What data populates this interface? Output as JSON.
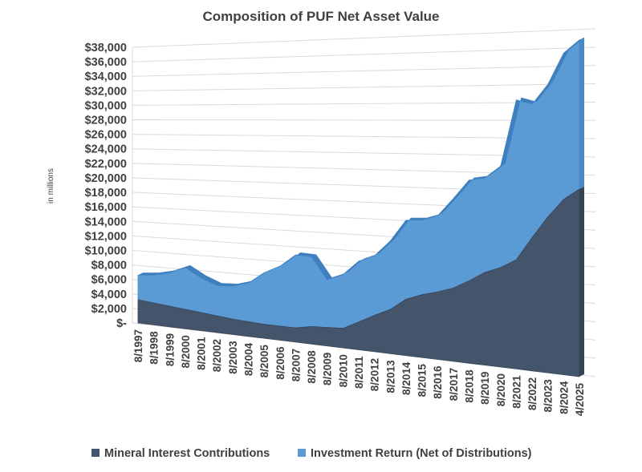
{
  "chart_data": {
    "type": "area",
    "stacked": true,
    "title": "Composition of PUF Net Asset Value",
    "ylabel": "in millions",
    "xlabel": "",
    "ylim": [
      0,
      38000
    ],
    "y_step": 2000,
    "y_tick_labels": [
      "$-",
      "$2,000",
      "$4,000",
      "$6,000",
      "$8,000",
      "$10,000",
      "$12,000",
      "$14,000",
      "$16,000",
      "$18,000",
      "$20,000",
      "$22,000",
      "$24,000",
      "$26,000",
      "$28,000",
      "$30,000",
      "$32,000",
      "$34,000",
      "$36,000",
      "$38,000"
    ],
    "grid": true,
    "legend_position": "bottom",
    "categories": [
      "8/1997",
      "8/1998",
      "8/1999",
      "8/2000",
      "8/2001",
      "8/2002",
      "8/2003",
      "8/2004",
      "8/2005",
      "8/2006",
      "8/2007",
      "8/2008",
      "8/2009",
      "8/2010",
      "8/2011",
      "8/2012",
      "8/2013",
      "8/2014",
      "8/2015",
      "8/2016",
      "8/2017",
      "8/2018",
      "8/2019",
      "8/2020",
      "8/2021",
      "8/2022",
      "8/2023",
      "8/2024",
      "4/2025"
    ],
    "series": [
      {
        "name": "Mineral Interest Contributions",
        "color": "#44546a",
        "values": [
          3200,
          3000,
          2800,
          2600,
          2400,
          2200,
          2000,
          1900,
          1800,
          1800,
          1800,
          2200,
          2300,
          2400,
          3400,
          4400,
          5300,
          6700,
          7400,
          7900,
          8500,
          9500,
          10600,
          11300,
          12300,
          14900,
          17300,
          19300,
          20500
        ]
      },
      {
        "name": "Investment Return (Net of Distributions)",
        "color": "#5b9bd5",
        "values": [
          3400,
          3800,
          4500,
          5600,
          4600,
          4000,
          4300,
          5000,
          6600,
          7600,
          9200,
          8700,
          5900,
          6600,
          7400,
          7200,
          8200,
          9400,
          8800,
          8900,
          10400,
          11600,
          10800,
          11500,
          18000,
          14900,
          14700,
          16100,
          16300
        ]
      }
    ]
  }
}
